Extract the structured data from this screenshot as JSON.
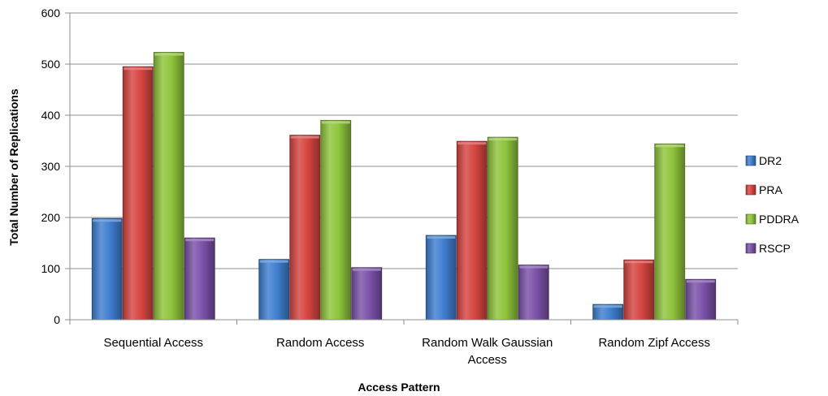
{
  "chart_data": {
    "type": "bar",
    "title": "",
    "xlabel": "Access Pattern",
    "ylabel": "Total Number of Replications",
    "categories": [
      [
        "Sequential Access"
      ],
      [
        "Random Access"
      ],
      [
        "Random Walk Gaussian",
        "Access"
      ],
      [
        "Random Zipf Access"
      ]
    ],
    "series": [
      {
        "name": "DR2",
        "color": "#3f7fd0",
        "values": [
          198,
          118,
          165,
          30
        ]
      },
      {
        "name": "PRA",
        "color": "#d64541",
        "values": [
          495,
          361,
          349,
          117
        ]
      },
      {
        "name": "PDDRA",
        "color": "#8fc43c",
        "values": [
          523,
          390,
          357,
          344
        ]
      },
      {
        "name": "RSCP",
        "color": "#7b52a9",
        "values": [
          160,
          102,
          107,
          79
        ]
      }
    ],
    "ylim": [
      0,
      600
    ],
    "yticks": [
      0,
      100,
      200,
      300,
      400,
      500,
      600
    ],
    "grid": true,
    "legend_position": "right"
  }
}
